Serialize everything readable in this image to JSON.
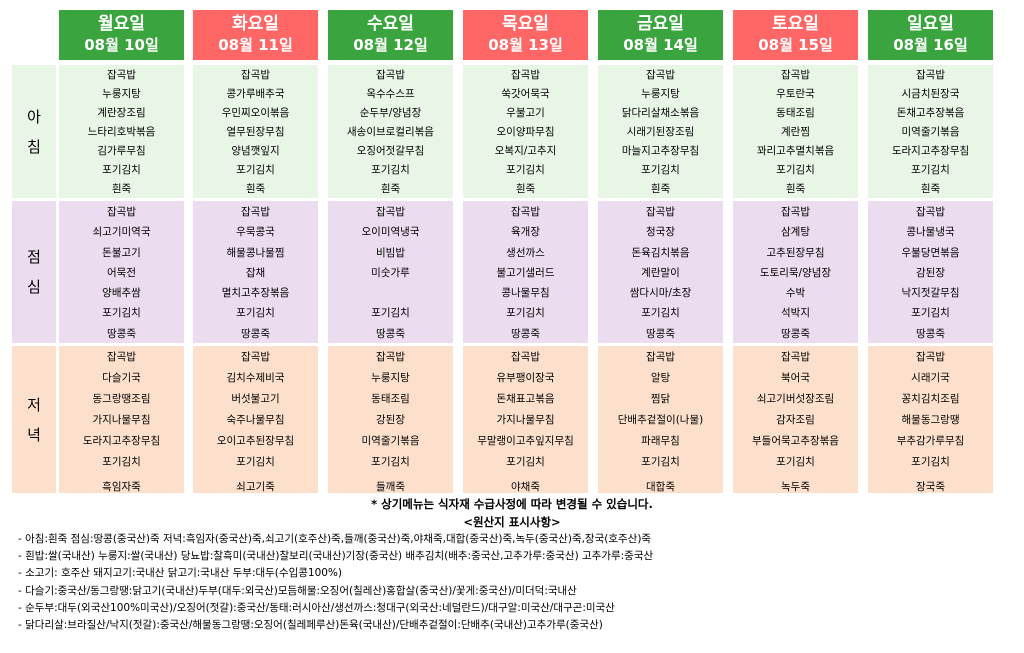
{
  "days": [
    {
      "name": "월요일",
      "date": "08월 10일",
      "color": "#3aa53e"
    },
    {
      "name": "화요일",
      "date": "08월 11일",
      "color": "#ff6666"
    },
    {
      "name": "수요일",
      "date": "08월 12일",
      "color": "#3aa53e"
    },
    {
      "name": "목요일",
      "date": "08월 13일",
      "color": "#ff6666"
    },
    {
      "name": "금요일",
      "date": "08월 14일",
      "color": "#3aa53e"
    },
    {
      "name": "토요일",
      "date": "08월 15일",
      "color": "#ff6666"
    },
    {
      "name": "일요일",
      "date": "08월 16일",
      "color": "#3aa53e"
    }
  ],
  "meal_labels": {
    "breakfast": [
      "아",
      "침"
    ],
    "lunch": [
      "점",
      "심"
    ],
    "dinner": [
      "저",
      "녁"
    ]
  },
  "breakfast": [
    [
      "잡곡밥",
      "누룽지탕",
      "계란장조림",
      "느타리호박볶음",
      "김가루무침",
      "포기김치",
      "흰죽"
    ],
    [
      "잡곡밥",
      "콩가루배추국",
      "우민찌오이볶음",
      "열무된장무침",
      "양념깻잎지",
      "포기김치",
      "흰죽"
    ],
    [
      "잡곡밥",
      "옥수수스프",
      "순두부/양념장",
      "새송이브로컬리볶음",
      "오징어젓갈무침",
      "포기김치",
      "흰죽"
    ],
    [
      "잡곡밥",
      "쑥갓어묵국",
      "우불고기",
      "오이양파무침",
      "오복지/고추지",
      "포기김치",
      "흰죽"
    ],
    [
      "잡곡밥",
      "누룽지탕",
      "닭다리살채소볶음",
      "시래기된장조림",
      "마늘지고추장무침",
      "포기김치",
      "흰죽"
    ],
    [
      "잡곡밥",
      "우토란국",
      "동태조림",
      "계란찜",
      "꽈리고추멸치볶음",
      "포기김치",
      "흰죽"
    ],
    [
      "잡곡밥",
      "시금치된장국",
      "돈채고추장볶음",
      "미역줄기볶음",
      "도라지고추장무침",
      "포기김치",
      "흰죽"
    ]
  ],
  "lunch": [
    [
      "잡곡밥",
      "쇠고기미역국",
      "돈불고기",
      "어묵전",
      "양배추쌈",
      "포기김치",
      "땅콩죽"
    ],
    [
      "잡곡밥",
      "우묵콩국",
      "해물콩나물찜",
      "잡채",
      "멸치고추장볶음",
      "포기김치",
      "땅콩죽"
    ],
    [
      "잡곡밥",
      "오이미역냉국",
      "비빔밥",
      "미숫가루",
      "",
      "포기김치",
      "땅콩죽"
    ],
    [
      "잡곡밥",
      "육개장",
      "생선까스",
      "불고기샐러드",
      "콩나물무침",
      "포기김치",
      "땅콩죽"
    ],
    [
      "잡곡밥",
      "청국장",
      "돈육김치볶음",
      "계란말이",
      "쌈다시마/초장",
      "포기김치",
      "땅콩죽"
    ],
    [
      "잡곡밥",
      "삼계탕",
      "고추된장무침",
      "도토리묵/양념장",
      "수박",
      "석박지",
      "땅콩죽"
    ],
    [
      "잡곡밥",
      "콩나물냉국",
      "우불당면볶음",
      "감된장",
      "낙지젓갈무침",
      "포기김치",
      "땅콩죽"
    ]
  ],
  "dinner": [
    [
      "잡곡밥",
      "다슬기국",
      "동그랑땡조림",
      "가지나물무침",
      "도라지고추장무침",
      "포기김치",
      "흑임자죽"
    ],
    [
      "잡곡밥",
      "김치수제비국",
      "버섯불고기",
      "숙주나물무침",
      "오이고추된장무침",
      "포기김치",
      "쇠고기죽"
    ],
    [
      "잡곡밥",
      "누룽지탕",
      "동태조림",
      "강된장",
      "미역줄기볶음",
      "포기김치",
      "들깨죽"
    ],
    [
      "잡곡밥",
      "유부팽이장국",
      "돈채표고볶음",
      "가지나물무침",
      "무말랭이고추잎지무침",
      "포기김치",
      "야채죽"
    ],
    [
      "잡곡밥",
      "알탕",
      "찜닭",
      "단배추겉절이(나물)",
      "파래무침",
      "포기김치",
      "대합죽"
    ],
    [
      "잡곡밥",
      "북어국",
      "쇠고기버섯장조림",
      "감자조림",
      "부들어묵고추장볶음",
      "포기김치",
      "녹두죽"
    ],
    [
      "잡곡밥",
      "시래기국",
      "꽁치김치조림",
      "해물동그랑땡",
      "부추감가루무침",
      "포기김치",
      "장국죽"
    ]
  ],
  "notice": "* 상기메뉴는 식자재 수급사정에 따라 변경될 수 있습니다.",
  "origin_title": "<원산지 표시사항>",
  "origins": [
    "- 아침:흰죽 점심:땅콩(중국산)죽 저녁:흑임자(중국산)죽,쇠고기(호주산)죽,들깨(중국산)죽,야채죽,대합(중국산)죽,녹두(중국산)죽,장국(호주산)죽",
    "- 흰밥:쌀(국내산) 누룽지:쌀(국내산) 당뇨밥:찰흑미(국내산)찰보리(국내산)기장(중국산) 배추김치(배추:중국산,고추가루:중국산) 고추가루:중국산",
    "- 소고기: 호주산 돼지고기:국내산 닭고기:국내산 두부:대두(수입콩100%)",
    "- 다슬기:중국산/동그랑땡:닭고기(국내산)두부(대두:외국산)모듬해물:오징어(칠레산)홍합살(중국산)/꽃게:중국산)/미더덕:국내산",
    "- 순두부:대두(외국산100%미국산)/오징어(젓갈):중국산/동태:러시아산/생선까스:청대구(외국산:네덜란드)/대구알:미국산/대구곤:미국산",
    "- 닭다리살:브라질산/낙지(젓갈):중국산/해물동그랑땡:오징어(칠레페루산)돈육(국내산)/단배추겉절이:단배추(국내산)고추가루(중국산)"
  ]
}
